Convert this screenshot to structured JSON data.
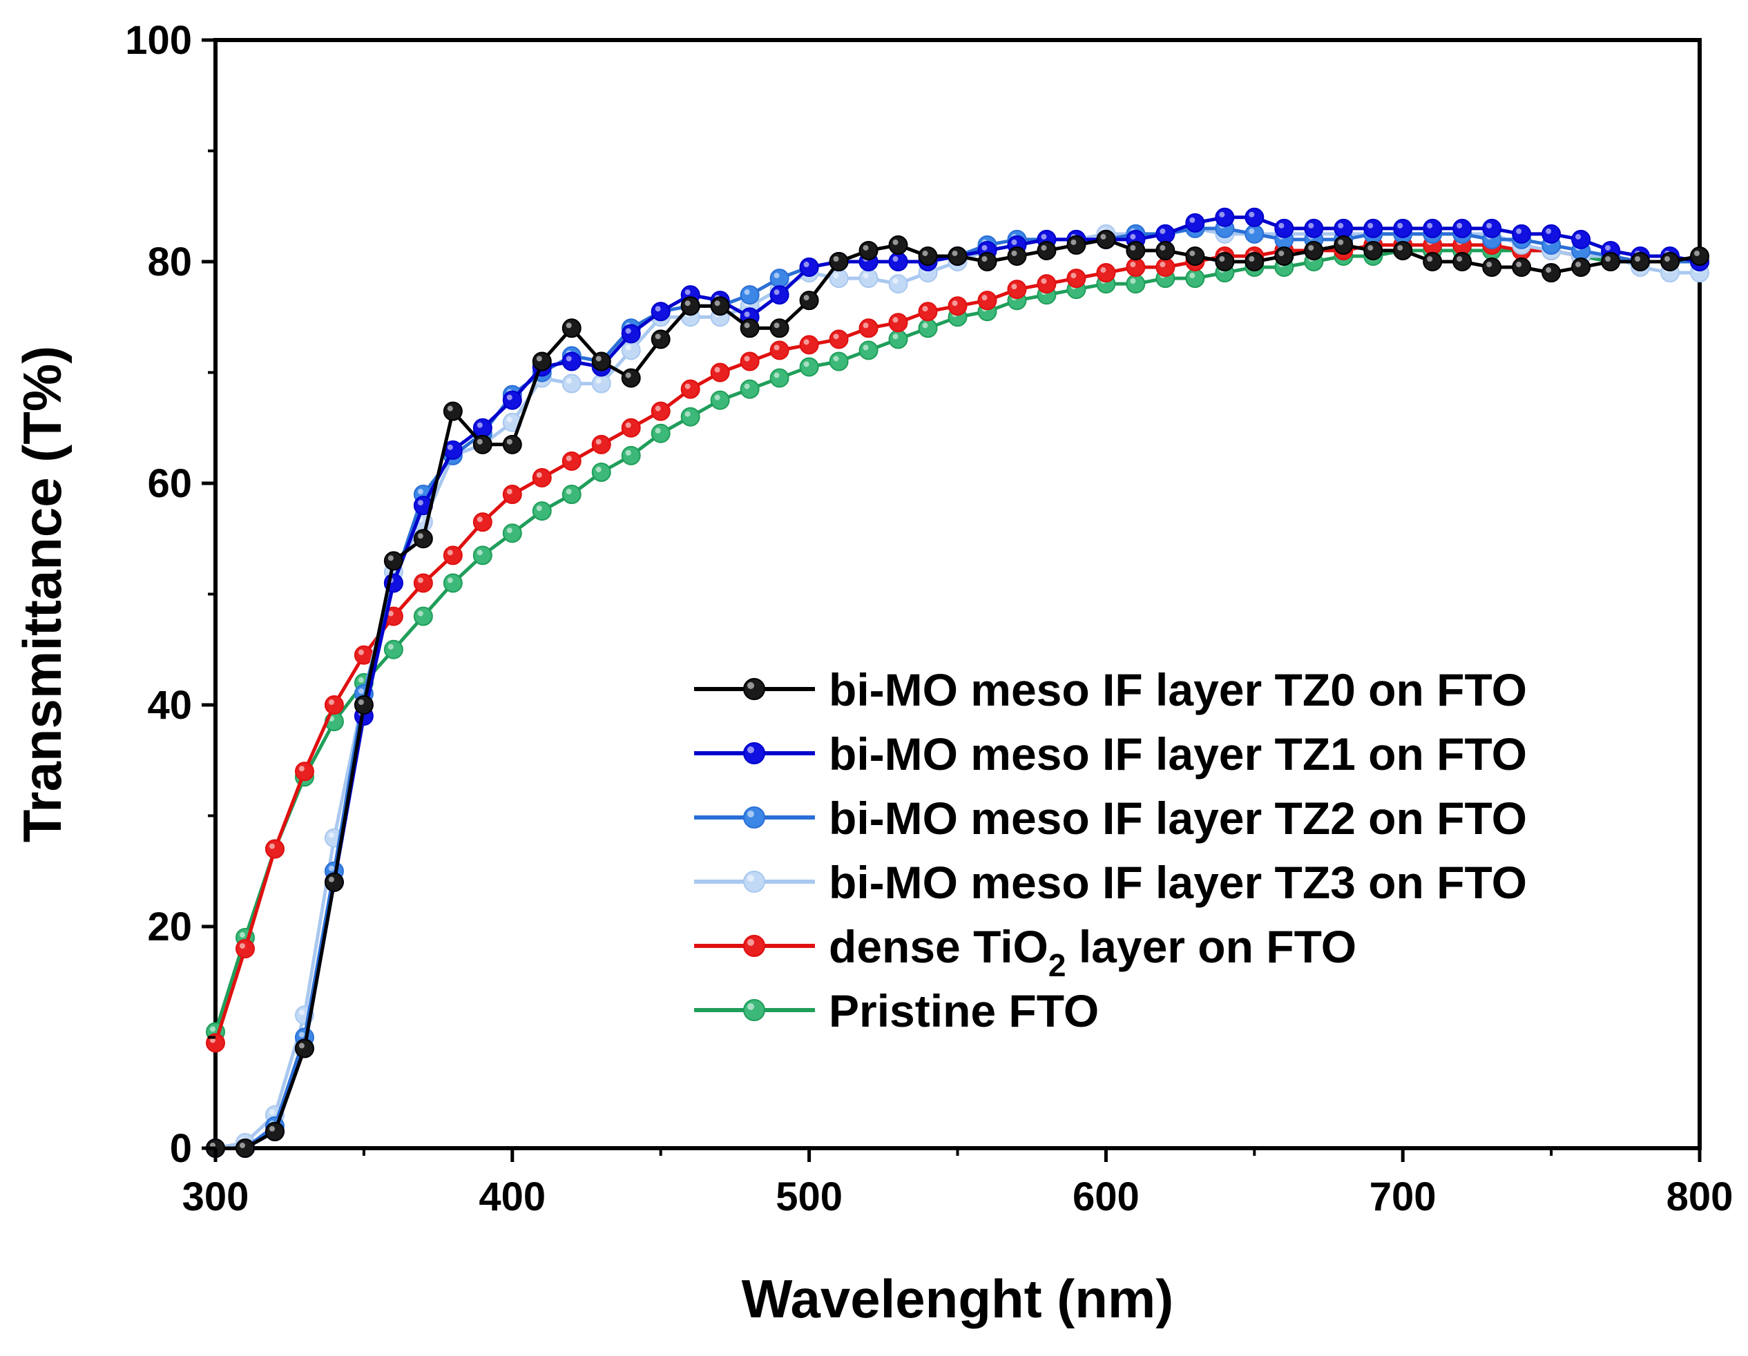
{
  "chart_data": {
    "type": "line",
    "title": "",
    "xlabel": "Wavelenght (nm)",
    "ylabel": "Transmittance (T%)",
    "xlim": [
      300,
      800
    ],
    "ylim": [
      0,
      100
    ],
    "xticks": [
      300,
      400,
      500,
      600,
      700,
      800
    ],
    "yticks": [
      0,
      20,
      40,
      60,
      80,
      100
    ],
    "legend_position": "lower-right",
    "series": [
      {
        "name": "bi-MO meso IF layer TZ0 on FTO",
        "color": "#000000",
        "marker_color": "#1a1a1a",
        "x": [
          300,
          310,
          320,
          330,
          340,
          350,
          360,
          370,
          380,
          390,
          400,
          410,
          420,
          430,
          440,
          450,
          460,
          470,
          480,
          490,
          500,
          510,
          520,
          530,
          540,
          550,
          560,
          570,
          580,
          590,
          600,
          610,
          620,
          630,
          640,
          650,
          660,
          670,
          680,
          690,
          700,
          710,
          720,
          730,
          740,
          750,
          760,
          770,
          780,
          790,
          800
        ],
        "y": [
          0,
          0,
          1.5,
          9,
          24,
          40,
          53,
          55,
          66.5,
          63.5,
          63.5,
          71,
          74,
          71,
          69.5,
          73,
          76,
          76,
          74,
          74,
          76.5,
          80,
          81,
          81.5,
          80.5,
          80.5,
          80,
          80.5,
          81,
          81.5,
          82,
          81,
          81,
          80.5,
          80,
          80,
          80.5,
          81,
          81.5,
          81,
          81,
          80,
          80,
          79.5,
          79.5,
          79,
          79.5,
          80,
          80,
          80,
          80.5
        ]
      },
      {
        "name": "bi-MO meso IF layer TZ1 on FTO",
        "color": "#0000cc",
        "marker_color": "#1010e0",
        "x": [
          300,
          310,
          320,
          330,
          340,
          350,
          360,
          370,
          380,
          390,
          400,
          410,
          420,
          430,
          440,
          450,
          460,
          470,
          480,
          490,
          500,
          510,
          520,
          530,
          540,
          550,
          560,
          570,
          580,
          590,
          600,
          610,
          620,
          630,
          640,
          650,
          660,
          670,
          680,
          690,
          700,
          710,
          720,
          730,
          740,
          750,
          760,
          770,
          780,
          790,
          800
        ],
        "y": [
          0,
          0,
          1.5,
          9,
          24,
          39,
          51,
          58,
          63,
          65,
          67.5,
          70.5,
          71,
          70.5,
          73.5,
          75.5,
          77,
          76.5,
          75,
          77,
          79.5,
          80,
          80,
          80,
          80,
          80.5,
          81,
          81.5,
          82,
          82,
          82,
          82,
          82.5,
          83.5,
          84,
          84,
          83,
          83,
          83,
          83,
          83,
          83,
          83,
          83,
          82.5,
          82.5,
          82,
          81,
          80.5,
          80.5,
          80
        ]
      },
      {
        "name": "bi-MO meso IF layer TZ2 on FTO",
        "color": "#2a6fd6",
        "marker_color": "#3c86e6",
        "x": [
          300,
          310,
          320,
          330,
          340,
          350,
          360,
          370,
          380,
          390,
          400,
          410,
          420,
          430,
          440,
          450,
          460,
          470,
          480,
          490,
          500,
          510,
          520,
          530,
          540,
          550,
          560,
          570,
          580,
          590,
          600,
          610,
          620,
          630,
          640,
          650,
          660,
          670,
          680,
          690,
          700,
          710,
          720,
          730,
          740,
          750,
          760,
          770,
          780,
          790,
          800
        ],
        "y": [
          0,
          0,
          2,
          10,
          25,
          41,
          51,
          59,
          62.5,
          64.5,
          68,
          70,
          71.5,
          71,
          74,
          75.5,
          76,
          76,
          77,
          78.5,
          79.5,
          80,
          80,
          80,
          80,
          80.5,
          81.5,
          82,
          82,
          82,
          82,
          82.5,
          82.5,
          83,
          83,
          82.5,
          82,
          82,
          82,
          82.5,
          82.5,
          82.5,
          82.5,
          82,
          82,
          81.5,
          81,
          80.5,
          80,
          80,
          80
        ]
      },
      {
        "name": "bi-MO meso IF layer TZ3 on FTO",
        "color": "#a9c8f0",
        "marker_color": "#c2d9f5",
        "x": [
          300,
          310,
          320,
          330,
          340,
          350,
          360,
          370,
          380,
          390,
          400,
          410,
          420,
          430,
          440,
          450,
          460,
          470,
          480,
          490,
          500,
          510,
          520,
          530,
          540,
          550,
          560,
          570,
          580,
          590,
          600,
          610,
          620,
          630,
          640,
          650,
          660,
          670,
          680,
          690,
          700,
          710,
          720,
          730,
          740,
          750,
          760,
          770,
          780,
          790,
          800
        ],
        "y": [
          0,
          0.5,
          3,
          12,
          28,
          41,
          52,
          56.5,
          62.5,
          63.5,
          65.5,
          69.5,
          69,
          69,
          72,
          75,
          75,
          75,
          76,
          77.5,
          79,
          78.5,
          78.5,
          78,
          79,
          80,
          81,
          81.5,
          82,
          82,
          82.5,
          82.5,
          82.5,
          83,
          82.5,
          82.5,
          82.5,
          82.5,
          82.5,
          82.5,
          82.5,
          82.5,
          82.5,
          82.5,
          81.5,
          81,
          80.5,
          80.5,
          79.5,
          79,
          79
        ]
      },
      {
        "name": "dense TiO2 layer on FTO",
        "name_main": "dense TiO",
        "name_sub": "2",
        "name_rest": " layer on FTO",
        "color": "#e01010",
        "marker_color": "#e82020",
        "x": [
          300,
          310,
          320,
          330,
          340,
          350,
          360,
          370,
          380,
          390,
          400,
          410,
          420,
          430,
          440,
          450,
          460,
          470,
          480,
          490,
          500,
          510,
          520,
          530,
          540,
          550,
          560,
          570,
          580,
          590,
          600,
          610,
          620,
          630,
          640,
          650,
          660,
          670,
          680,
          690,
          700,
          710,
          720,
          730,
          740,
          750,
          760,
          770,
          780,
          790,
          800
        ],
        "y": [
          9.5,
          18,
          27,
          34,
          40,
          44.5,
          48,
          51,
          53.5,
          56.5,
          59,
          60.5,
          62,
          63.5,
          65,
          66.5,
          68.5,
          70,
          71,
          72,
          72.5,
          73,
          74,
          74.5,
          75.5,
          76,
          76.5,
          77.5,
          78,
          78.5,
          79,
          79.5,
          79.5,
          80,
          80.5,
          80.5,
          81,
          81,
          81,
          81.5,
          81.5,
          81.5,
          81.5,
          81.5,
          81,
          81,
          80.5,
          80.5,
          80,
          80,
          80
        ]
      },
      {
        "name": "Pristine FTO",
        "color": "#1f9e5a",
        "marker_color": "#3cb878",
        "x": [
          300,
          310,
          320,
          330,
          340,
          350,
          360,
          370,
          380,
          390,
          400,
          410,
          420,
          430,
          440,
          450,
          460,
          470,
          480,
          490,
          500,
          510,
          520,
          530,
          540,
          550,
          560,
          570,
          580,
          590,
          600,
          610,
          620,
          630,
          640,
          650,
          660,
          670,
          680,
          690,
          700,
          710,
          720,
          730,
          740,
          750,
          760,
          770,
          780,
          790,
          800
        ],
        "y": [
          10.5,
          19,
          27,
          33.5,
          38.5,
          42,
          45,
          48,
          51,
          53.5,
          55.5,
          57.5,
          59,
          61,
          62.5,
          64.5,
          66,
          67.5,
          68.5,
          69.5,
          70.5,
          71,
          72,
          73,
          74,
          75,
          75.5,
          76.5,
          77,
          77.5,
          78,
          78,
          78.5,
          78.5,
          79,
          79.5,
          79.5,
          80,
          80.5,
          80.5,
          81,
          81,
          81,
          81,
          81,
          81,
          80.5,
          80,
          80,
          80,
          80
        ]
      }
    ]
  }
}
